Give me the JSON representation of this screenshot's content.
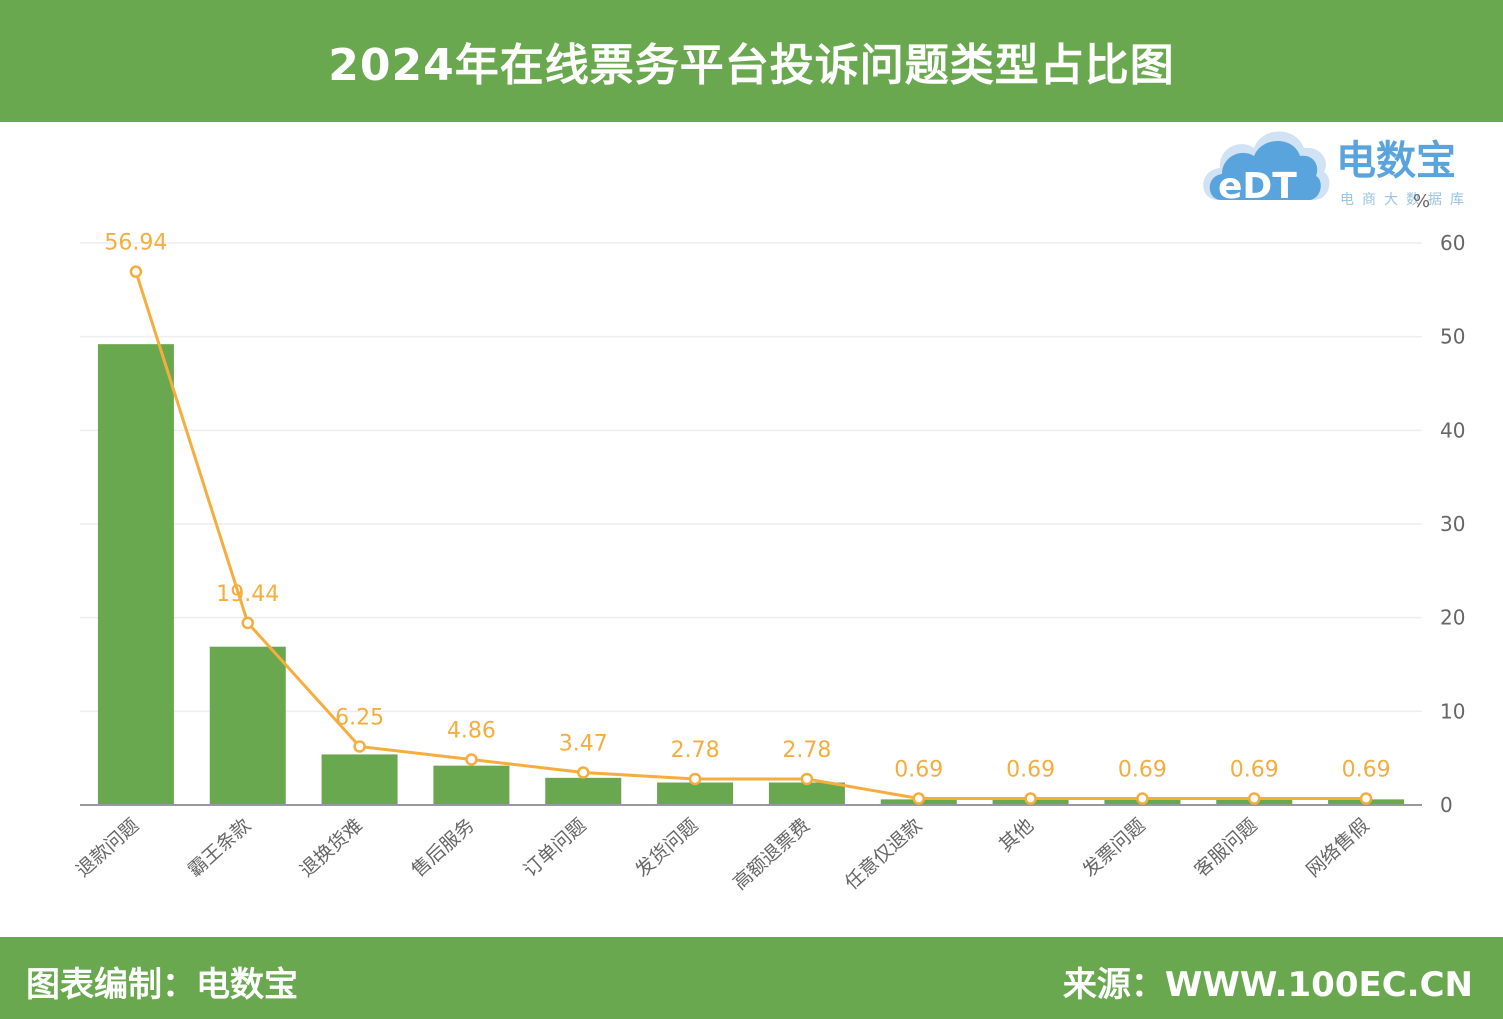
{
  "header": {
    "title": "2024年在线票务平台投诉问题类型占比图"
  },
  "footer": {
    "left": "图表编制：电数宝",
    "right": "来源：WWW.100EC.CN"
  },
  "logo": {
    "brand": "电数宝",
    "sub": "电商大数据库",
    "mark": "eDT"
  },
  "colors": {
    "green": "#6aa84f",
    "orange": "#f5ad3e",
    "grid": "#eeeeee",
    "axis": "#999999"
  },
  "chart_data": {
    "type": "bar",
    "title": "2024年在线票务平台投诉问题类型占比图",
    "ylabel": "%",
    "ylim": [
      0,
      60
    ],
    "yticks": [
      "0",
      "10",
      "20",
      "30",
      "40",
      "50",
      "60"
    ],
    "grid": true,
    "categories": [
      "退款问题",
      "霸王条款",
      "退换货难",
      "售后服务",
      "订单问题",
      "发货问题",
      "高额退票费",
      "任意仅退款",
      "其他",
      "发票问题",
      "客服问题",
      "网络售假"
    ],
    "series": [
      {
        "type": "bar",
        "values": [
          49.2,
          16.9,
          5.4,
          4.2,
          2.9,
          2.4,
          2.4,
          0.6,
          0.6,
          0.6,
          0.6,
          0.6
        ]
      },
      {
        "type": "line",
        "values": [
          56.94,
          19.44,
          6.25,
          4.86,
          3.47,
          2.78,
          2.78,
          0.69,
          0.69,
          0.69,
          0.69,
          0.69
        ],
        "labels": [
          "56.94",
          "19.44",
          "6.25",
          "4.86",
          "3.47",
          "2.78",
          "2.78",
          "0.69",
          "0.69",
          "0.69",
          "0.69",
          "0.69"
        ]
      }
    ]
  }
}
